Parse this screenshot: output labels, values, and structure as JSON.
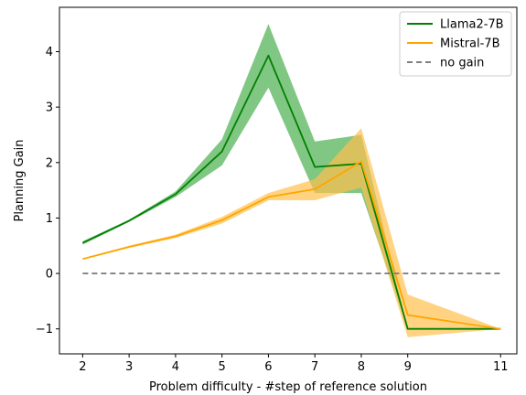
{
  "chart_data": {
    "type": "line",
    "title": "",
    "xlabel": "Problem difficulty - #step of reference solution",
    "ylabel": "Planning Gain",
    "x": [
      2,
      3,
      4,
      5,
      6,
      7,
      8,
      9,
      11
    ],
    "xticks": [
      "2",
      "3",
      "4",
      "5",
      "6",
      "7",
      "8",
      "9",
      "11"
    ],
    "yticks": [
      "−1",
      "0",
      "1",
      "2",
      "3",
      "4"
    ],
    "xlim": [
      1.5,
      11.35
    ],
    "ylim": [
      -1.45,
      4.8
    ],
    "grid": false,
    "legend_position": "top-right",
    "series": [
      {
        "name": "Llama2-7B",
        "color": "#008000",
        "band_color": "#4caf50",
        "values": [
          0.55,
          0.95,
          1.43,
          2.2,
          3.93,
          1.92,
          1.98,
          -1.0,
          -1.0
        ],
        "lower": [
          0.52,
          0.93,
          1.38,
          1.95,
          3.35,
          1.45,
          1.45,
          -1.0,
          -1.0
        ],
        "upper": [
          0.58,
          0.97,
          1.48,
          2.42,
          4.5,
          2.38,
          2.5,
          -1.0,
          -1.0
        ]
      },
      {
        "name": "Mistral-7B",
        "color": "#ffa500",
        "band_color": "#ffc04d",
        "values": [
          0.26,
          0.48,
          0.67,
          0.96,
          1.38,
          1.52,
          2.02,
          -0.75,
          -1.0
        ],
        "lower": [
          0.25,
          0.46,
          0.64,
          0.9,
          1.32,
          1.32,
          1.55,
          -1.15,
          -1.0
        ],
        "upper": [
          0.27,
          0.5,
          0.7,
          1.02,
          1.45,
          1.7,
          2.62,
          -0.38,
          -1.0
        ]
      },
      {
        "name": "no gain",
        "color": "#808080",
        "dashed": true,
        "values": [
          0,
          0,
          0,
          0,
          0,
          0,
          0,
          0,
          0
        ]
      }
    ]
  }
}
